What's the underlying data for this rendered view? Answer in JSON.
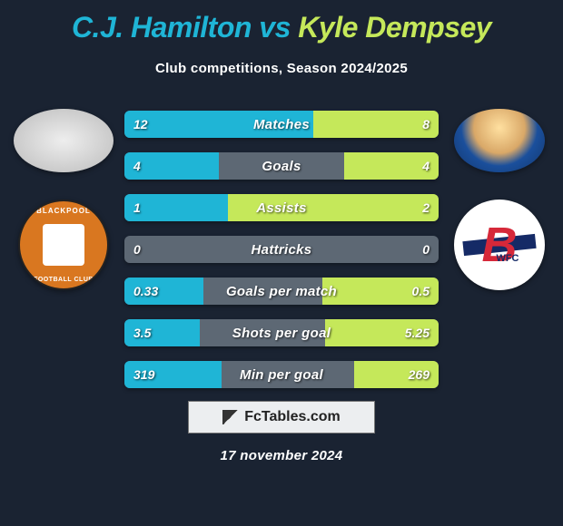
{
  "title": {
    "player1": "C.J. Hamilton",
    "vs": "vs",
    "player2": "Kyle Dempsey"
  },
  "subtitle": "Club competitions, Season 2024/2025",
  "colors": {
    "player1": "#1fb5d6",
    "player2": "#c5e85a",
    "bar_bg": "#5d6874",
    "page_bg": "#1a2332"
  },
  "players": {
    "left": {
      "club_label_top": "BLACKPOOL",
      "club_label_bottom": "FOOTBALL CLUB"
    },
    "right": {
      "club_monogram": "B",
      "club_suffix": "WFC"
    }
  },
  "stats": [
    {
      "label": "Matches",
      "left_val": "12",
      "right_val": "8",
      "left_pct": 60,
      "right_pct": 40
    },
    {
      "label": "Goals",
      "left_val": "4",
      "right_val": "4",
      "left_pct": 30,
      "right_pct": 30
    },
    {
      "label": "Assists",
      "left_val": "1",
      "right_val": "2",
      "left_pct": 33,
      "right_pct": 67
    },
    {
      "label": "Hattricks",
      "left_val": "0",
      "right_val": "0",
      "left_pct": 0,
      "right_pct": 0
    },
    {
      "label": "Goals per match",
      "left_val": "0.33",
      "right_val": "0.5",
      "left_pct": 25,
      "right_pct": 37
    },
    {
      "label": "Shots per goal",
      "left_val": "3.5",
      "right_val": "5.25",
      "left_pct": 24,
      "right_pct": 36
    },
    {
      "label": "Min per goal",
      "left_val": "319",
      "right_val": "269",
      "left_pct": 31,
      "right_pct": 27
    }
  ],
  "footer": {
    "site_label": "FcTables.com",
    "date": "17 november 2024"
  }
}
